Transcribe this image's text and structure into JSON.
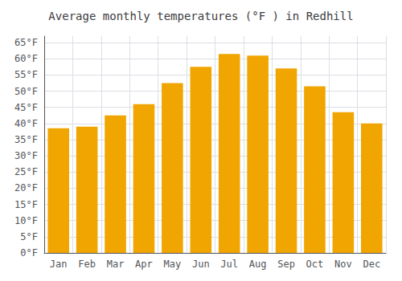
{
  "chart_data": {
    "type": "bar",
    "title": "Average monthly temperatures (°F ) in Redhill",
    "categories": [
      "Jan",
      "Feb",
      "Mar",
      "Apr",
      "May",
      "Jun",
      "Jul",
      "Aug",
      "Sep",
      "Oct",
      "Nov",
      "Dec"
    ],
    "values": [
      38.5,
      39.0,
      42.5,
      46.0,
      52.5,
      57.5,
      61.5,
      61.0,
      57.0,
      51.5,
      43.5,
      40.0
    ],
    "color": "#F0A500",
    "ylim": [
      0,
      67
    ],
    "yticks": [
      {
        "value": 0,
        "label": "0°F"
      },
      {
        "value": 5,
        "label": "5°F"
      },
      {
        "value": 10,
        "label": "10°F"
      },
      {
        "value": 15,
        "label": "15°F"
      },
      {
        "value": 20,
        "label": "20°F"
      },
      {
        "value": 25,
        "label": "25°F"
      },
      {
        "value": 30,
        "label": "30°F"
      },
      {
        "value": 35,
        "label": "35°F"
      },
      {
        "value": 40,
        "label": "40°F"
      },
      {
        "value": 45,
        "label": "45°F"
      },
      {
        "value": 50,
        "label": "50°F"
      },
      {
        "value": 55,
        "label": "55°F"
      },
      {
        "value": 60,
        "label": "60°F"
      },
      {
        "value": 65,
        "label": "65°F"
      }
    ],
    "grid": true
  }
}
